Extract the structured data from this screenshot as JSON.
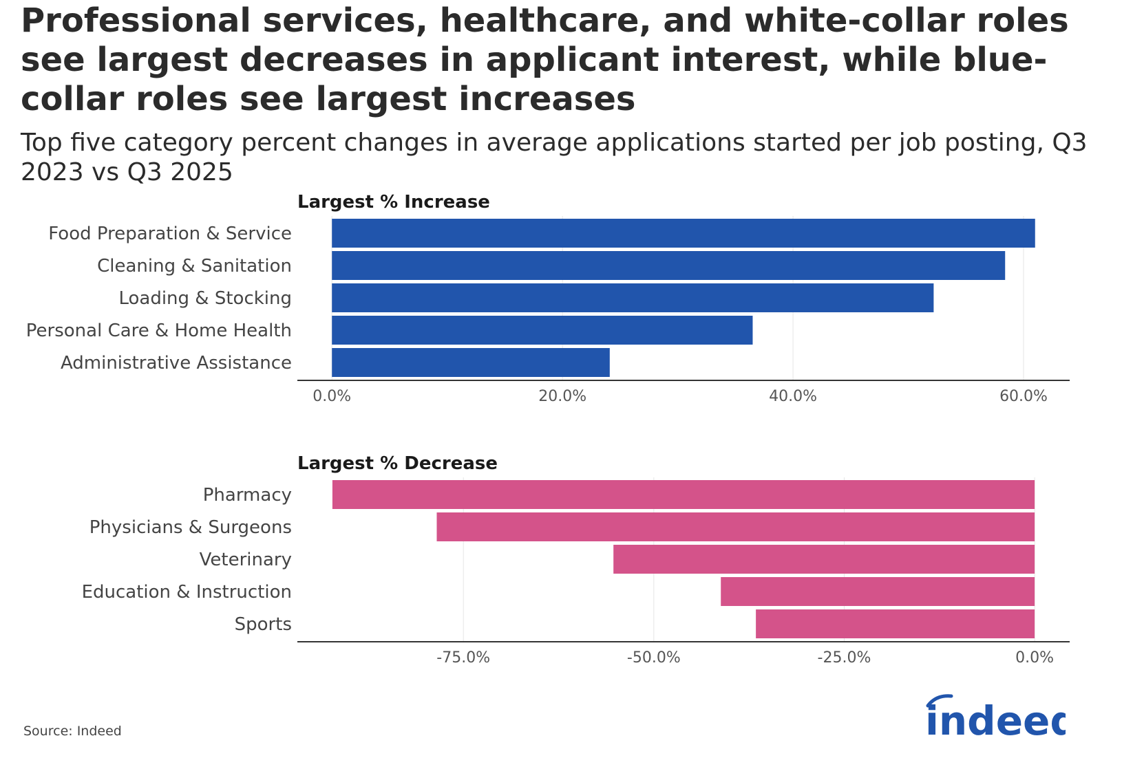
{
  "header": {
    "title": "Professional services, healthcare, and white-collar roles see largest decreases in applicant interest, while blue-collar roles see largest increases",
    "subtitle": "Top five category percent changes in average applications started per job posting, Q3 2023 vs Q3 2025"
  },
  "footer": {
    "source": "Source: Indeed",
    "logo_text": "indeed",
    "logo_icon": "indeed-logo-icon"
  },
  "chart_data": [
    {
      "type": "bar",
      "orientation": "horizontal",
      "title": "Largest % Increase",
      "categories": [
        "Food Preparation & Service",
        "Cleaning & Sanitation",
        "Loading & Stocking",
        "Personal Care & Home Health",
        "Administrative Assistance"
      ],
      "values": [
        61.0,
        58.4,
        52.2,
        36.5,
        24.1
      ],
      "xlim": [
        -3.0,
        64.0
      ],
      "xticks": [
        0,
        20,
        40,
        60
      ],
      "xtick_labels": [
        "0.0%",
        "20.0%",
        "40.0%",
        "60.0%"
      ],
      "grid": true,
      "color": "#2155ac"
    },
    {
      "type": "bar",
      "orientation": "horizontal",
      "title": "Largest % Decrease",
      "categories": [
        "Pharmacy",
        "Physicians & Surgeons",
        "Veterinary",
        "Education & Instruction",
        "Sports"
      ],
      "values": [
        -92.2,
        -78.5,
        -55.3,
        -41.2,
        -36.6
      ],
      "xlim": [
        -96.8,
        4.6
      ],
      "xticks": [
        -75,
        -50,
        -25,
        0
      ],
      "xtick_labels": [
        "-75.0%",
        "-50.0%",
        "-25.0%",
        "0.0%"
      ],
      "grid": true,
      "color": "#d4538a"
    }
  ]
}
